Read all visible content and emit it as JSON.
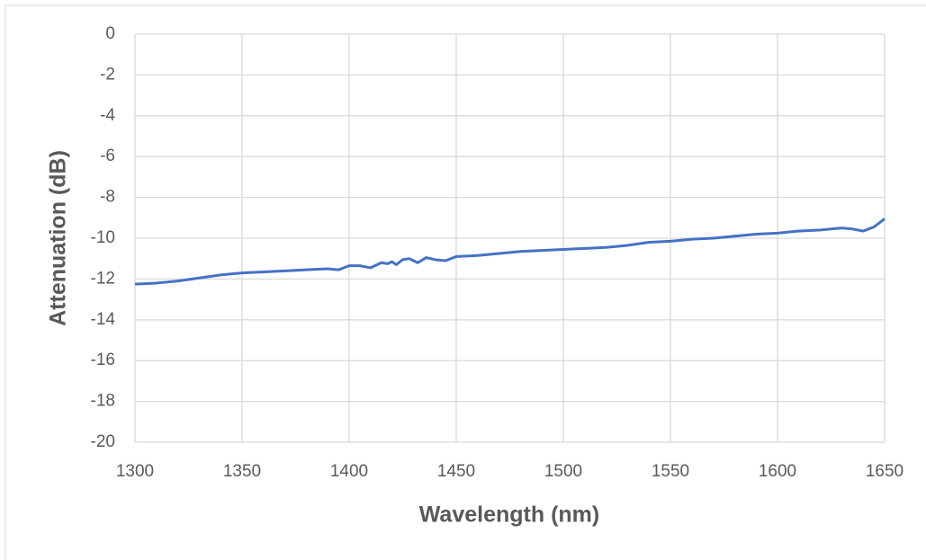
{
  "chart_data": {
    "type": "line",
    "x_label": "Wavelength (nm)",
    "y_label": "Attenuation (dB)",
    "x": [
      1300,
      1310,
      1320,
      1330,
      1340,
      1350,
      1360,
      1370,
      1380,
      1390,
      1395,
      1400,
      1405,
      1410,
      1415,
      1418,
      1420,
      1422,
      1425,
      1428,
      1432,
      1436,
      1440,
      1445,
      1450,
      1460,
      1470,
      1480,
      1490,
      1500,
      1510,
      1520,
      1530,
      1540,
      1550,
      1560,
      1570,
      1580,
      1590,
      1600,
      1610,
      1620,
      1630,
      1635,
      1640,
      1645,
      1650
    ],
    "series": [
      {
        "name": "Attenuation",
        "color": "#4472c4",
        "values": [
          -12.25,
          -12.2,
          -12.1,
          -11.95,
          -11.8,
          -11.7,
          -11.65,
          -11.6,
          -11.55,
          -11.5,
          -11.55,
          -11.35,
          -11.35,
          -11.45,
          -11.2,
          -11.25,
          -11.15,
          -11.3,
          -11.05,
          -11.0,
          -11.2,
          -10.95,
          -11.05,
          -11.1,
          -10.9,
          -10.85,
          -10.75,
          -10.65,
          -10.6,
          -10.55,
          -10.5,
          -10.45,
          -10.35,
          -10.2,
          -10.15,
          -10.05,
          -10.0,
          -9.9,
          -9.8,
          -9.75,
          -9.65,
          -9.6,
          -9.5,
          -9.55,
          -9.65,
          -9.45,
          -9.05
        ]
      }
    ],
    "xlim": [
      1300,
      1650
    ],
    "xticks": [
      1300,
      1350,
      1400,
      1450,
      1500,
      1550,
      1600,
      1650
    ],
    "ylim": [
      -20,
      0
    ],
    "yticks": [
      0,
      -2,
      -4,
      -6,
      -8,
      -10,
      -12,
      -14,
      -16,
      -18,
      -20
    ],
    "grid": true
  }
}
